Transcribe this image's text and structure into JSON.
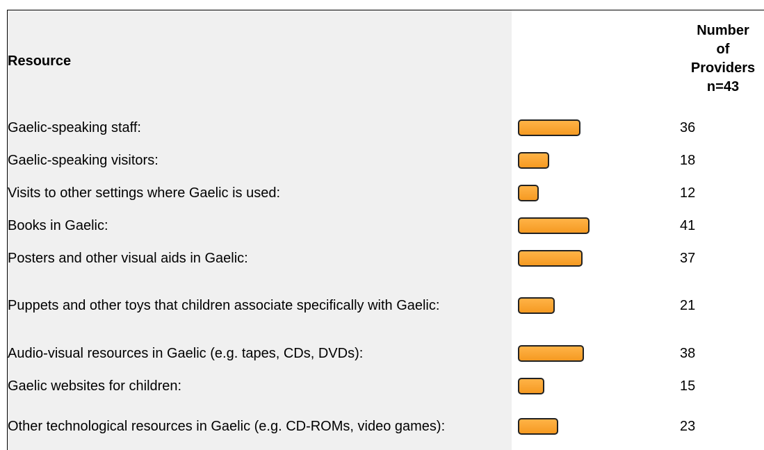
{
  "header": {
    "resource": "Resource",
    "number": [
      "Number",
      "of",
      "Providers",
      "n=43"
    ]
  },
  "rows": [
    {
      "resource": "Gaelic-speaking staff:",
      "value": 36
    },
    {
      "resource": "Gaelic-speaking visitors:",
      "value": 18
    },
    {
      "resource": "Visits to other settings where Gaelic is used:",
      "value": 12
    },
    {
      "resource": "Books in Gaelic:",
      "value": 41
    },
    {
      "resource": "Posters and other visual aids in Gaelic:",
      "value": 37
    },
    {
      "resource": "Puppets and other toys that children associate specifically with Gaelic:",
      "value": 21
    },
    {
      "resource": "Audio-visual resources in Gaelic (e.g. tapes, CDs, DVDs):",
      "value": 38
    },
    {
      "resource": "Gaelic websites for children:",
      "value": 15
    },
    {
      "resource": "Other technological resources in Gaelic (e.g. CD-ROMs, video games):",
      "value": 23
    }
  ]
}
